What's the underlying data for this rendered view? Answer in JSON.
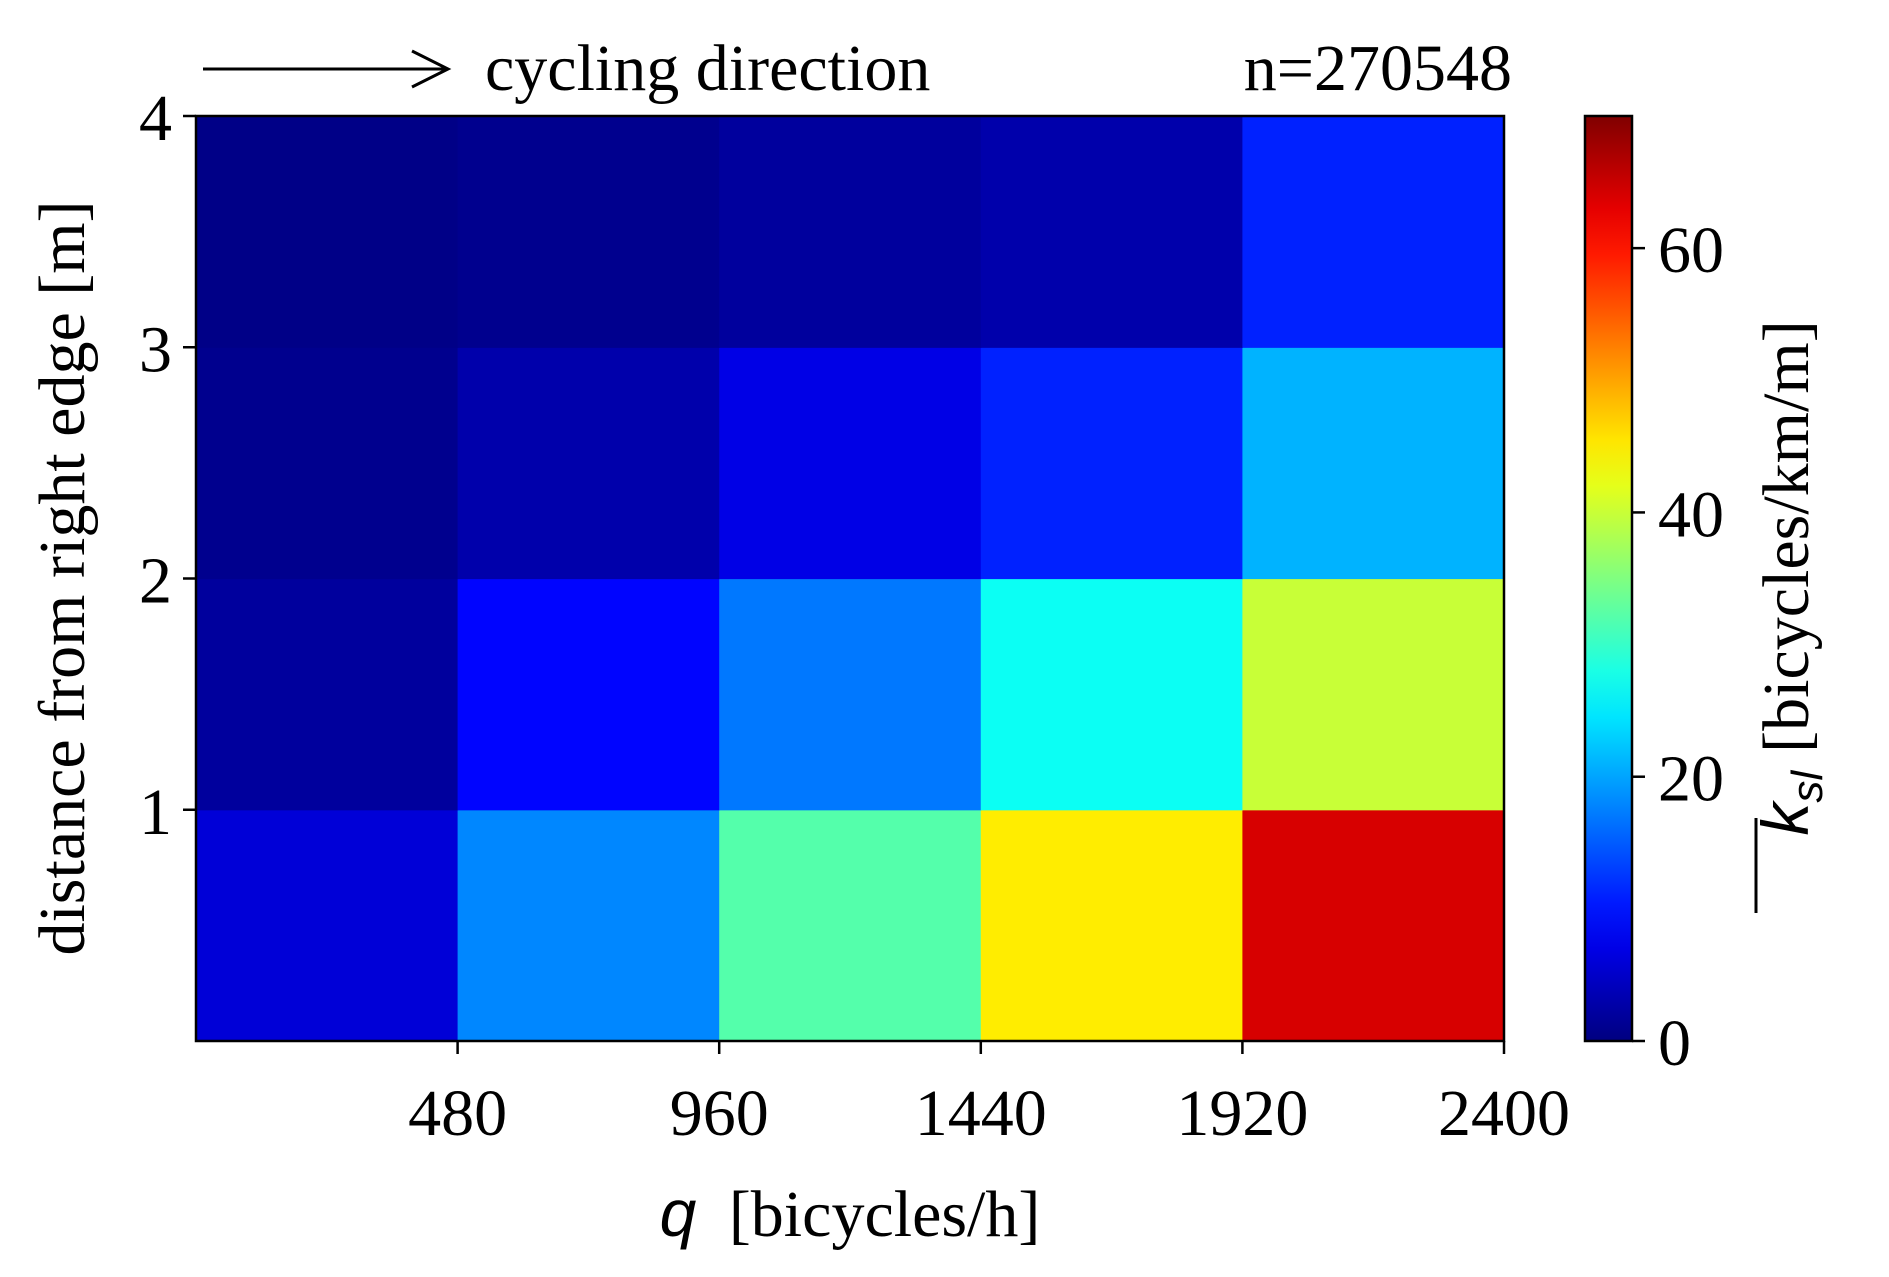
{
  "chart_data": {
    "type": "heatmap",
    "title": "",
    "header": {
      "arrow_label": "cycling direction",
      "n_label": "n=270548"
    },
    "x": {
      "label_var": "q",
      "label_unit": "[bicycles/h]",
      "range": [
        0,
        2400
      ],
      "ticks": [
        480,
        960,
        1440,
        1920,
        2400
      ],
      "tick_labels": [
        "480",
        "960",
        "1440",
        "1920",
        "2400"
      ],
      "bin_edges": [
        0,
        480,
        960,
        1440,
        1920,
        2400
      ]
    },
    "y": {
      "label": "distance from right edge [m]",
      "range": [
        0,
        4
      ],
      "ticks": [
        1,
        2,
        3,
        4
      ],
      "tick_labels": [
        "1",
        "2",
        "3",
        "4"
      ],
      "bin_edges": [
        0,
        1,
        2,
        3,
        4
      ]
    },
    "z": {
      "comment_rows": "rows ordered from y=0-1 (bottom) to y=3-4 (top); columns follow x bins",
      "values": [
        [
          6,
          18,
          32,
          45,
          64
        ],
        [
          2,
          9,
          17,
          27,
          40
        ],
        [
          1,
          3,
          7,
          11,
          21
        ],
        [
          0.5,
          1,
          2,
          3,
          11
        ]
      ]
    },
    "colorbar": {
      "label_var": "k",
      "label_sub": "sl",
      "label_unit": "[bicycles/km/m]",
      "range": [
        0,
        70
      ],
      "ticks": [
        0,
        20,
        40,
        60
      ],
      "tick_labels": [
        "0",
        "20",
        "40",
        "60"
      ],
      "colormap": "jet"
    },
    "grid": false,
    "legend": "none"
  }
}
